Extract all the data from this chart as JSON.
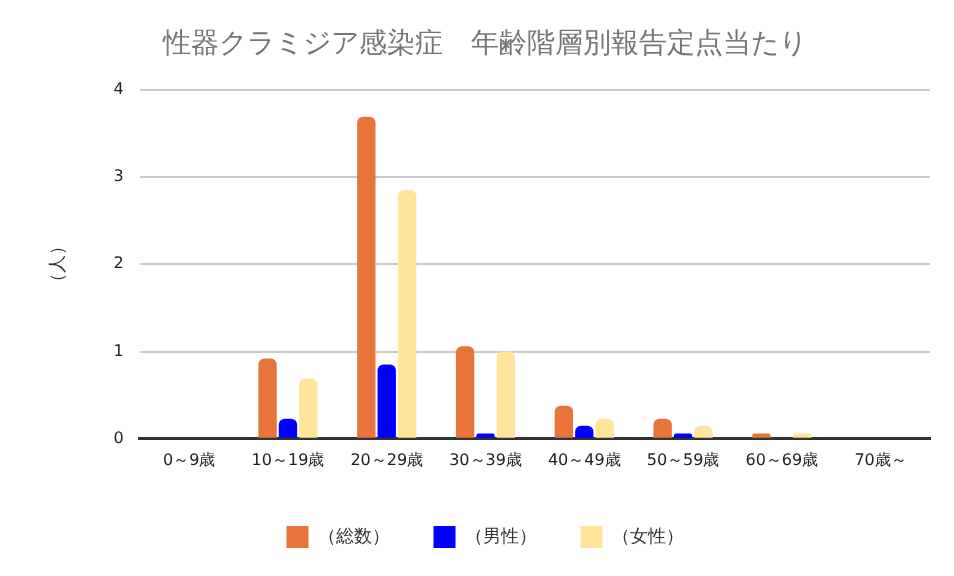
{
  "chart_data": {
    "type": "bar",
    "title": "性器クラミジア感染症　年齢階層別報告定点当たり",
    "ylabel": "（人）",
    "categories": [
      "0～9歳",
      "10～19歳",
      "20～29歳",
      "30～39歳",
      "40～49歳",
      "50～59歳",
      "60～69歳",
      "70歳～"
    ],
    "series": [
      {
        "name": "（総数）",
        "color": "#e8743b",
        "values": [
          0,
          0.92,
          3.69,
          1.06,
          0.38,
          0.23,
          0.06,
          0
        ]
      },
      {
        "name": "（男性）",
        "color": "#0000ff",
        "values": [
          0,
          0.23,
          0.85,
          0.06,
          0.15,
          0.06,
          0,
          0
        ]
      },
      {
        "name": "（女性）",
        "color": "#ffe49c",
        "values": [
          0,
          0.69,
          2.85,
          1.0,
          0.23,
          0.15,
          0.06,
          0
        ]
      }
    ],
    "ylim": [
      0,
      4
    ],
    "yticks": [
      0,
      1,
      2,
      3,
      4
    ],
    "grid": "y",
    "legend": "bottom"
  }
}
